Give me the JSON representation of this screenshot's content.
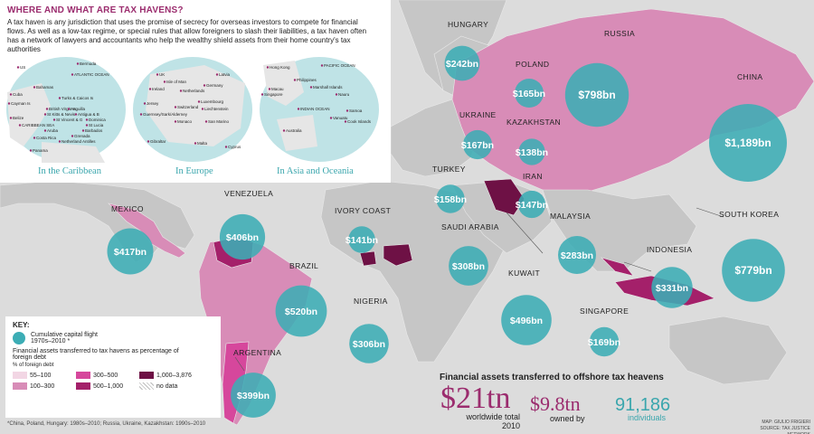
{
  "title": "WHERE AND WHAT ARE TAX HAVENS?",
  "intro": "A tax haven is any jurisdiction that uses the promise of secrecy for overseas investors to compete for financial flows. As well as a low-tax regime, or special rules that allow foreigners to slash their liabilities, a tax haven often has a network of lawyers and accountants who help the wealthy shield assets from their home country's tax authorities",
  "insets": [
    {
      "caption": "In the Caribbean",
      "places": [
        "US",
        "Bermuda",
        "ATLANTIC OCEAN",
        "Bahamas",
        "Cuba",
        "Cayman Is",
        "Turks & Caicos Is",
        "British Virgin Is",
        "Anguilla",
        "St Kitts & Nevis",
        "Antigua & B",
        "Dominica",
        "St Vincent & G",
        "St Lucia",
        "Belize",
        "CARIBBEAN SEA",
        "Aruba",
        "Barbados",
        "Grenada",
        "Costa Rica",
        "Netherland Antilles",
        "Panama"
      ]
    },
    {
      "caption": "In Europe",
      "places": [
        "UK",
        "Isle of Man",
        "Latvia",
        "Ireland",
        "Netherlands",
        "Germany",
        "Jersey",
        "Switzerland",
        "Luxembourg",
        "Liechtenstein",
        "Guernsey/Sark/Alderney",
        "Monaco",
        "San Marino",
        "Gibraltar",
        "Malta",
        "Cyprus"
      ]
    },
    {
      "caption": "In Asia and Oceania",
      "places": [
        "Hong Kong",
        "PACIFIC OCEAN",
        "Philippines",
        "Macau",
        "Singapore",
        "Marshall Islands",
        "Nauru",
        "INDIAN OCEAN",
        "Australia",
        "Samoa",
        "Vanuatu",
        "Cook Islands"
      ]
    }
  ],
  "countries": [
    {
      "name": "HUNGARY",
      "value": "$242bn",
      "amount": 242
    },
    {
      "name": "RUSSIA",
      "value": "$798bn",
      "amount": 798
    },
    {
      "name": "POLAND",
      "value": "$165bn",
      "amount": 165
    },
    {
      "name": "CHINA",
      "value": "$1,189bn",
      "amount": 1189
    },
    {
      "name": "UKRAINE",
      "value": "$167bn",
      "amount": 167
    },
    {
      "name": "KAZAKHSTAN",
      "value": "$138bn",
      "amount": 138
    },
    {
      "name": "TURKEY",
      "value": "$158bn",
      "amount": 158
    },
    {
      "name": "IRAN",
      "value": "$147bn",
      "amount": 147
    },
    {
      "name": "VENEZUELA",
      "value": "$406bn",
      "amount": 406
    },
    {
      "name": "IVORY COAST",
      "value": "$141bn",
      "amount": 141
    },
    {
      "name": "MEXICO",
      "value": "$417bn",
      "amount": 417
    },
    {
      "name": "SAUDI ARABIA",
      "value": "$308bn",
      "amount": 308
    },
    {
      "name": "MALAYSIA",
      "value": "$283bn",
      "amount": 283
    },
    {
      "name": "SOUTH KOREA",
      "value": "$779bn",
      "amount": 779
    },
    {
      "name": "INDONESIA",
      "value": "$331bn",
      "amount": 331
    },
    {
      "name": "BRAZIL",
      "value": "$520bn",
      "amount": 520
    },
    {
      "name": "NIGERIA",
      "value": "$306bn",
      "amount": 306
    },
    {
      "name": "KUWAIT",
      "value": "$496bn",
      "amount": 496
    },
    {
      "name": "SINGAPORE",
      "value": "$169bn",
      "amount": 169
    },
    {
      "name": "ARGENTINA",
      "value": "$399bn",
      "amount": 399
    }
  ],
  "key": {
    "title": "KEY:",
    "circle_label": "Cumulative capital flight 1970s–2010 *",
    "scale_title": "Financial assets transferred to tax havens as percentage of foreign debt",
    "scale_unit": "% of foreign debt",
    "bins": [
      {
        "label": "55–100",
        "color": "#f2d6e4"
      },
      {
        "label": "300–500",
        "color": "#d6479c"
      },
      {
        "label": "1,000–3,876",
        "color": "#6e1145"
      },
      {
        "label": "100–300",
        "color": "#d88cb7"
      },
      {
        "label": "500–1,000",
        "color": "#a4206a"
      },
      {
        "label": "no data",
        "color": "hatch"
      }
    ]
  },
  "footnote": "*China, Poland, Hungary: 1980s–2010; Russia, Ukraine, Kazakhstan: 1990s–2010",
  "summary": {
    "title": "Financial assets transferred to offshore tax heavens",
    "total": "$21tn",
    "total_sub": "worldwide total 2010",
    "owned": "$9.8tn",
    "owned_sub": "owned by",
    "individuals": "91,186",
    "individuals_sub": "individuals"
  },
  "credit": [
    "MAP: GIULIO FRIGIERI",
    "SOURCE: TAX JUSTICE NETWORK"
  ],
  "colors": {
    "bubble": "#3cadb5",
    "accent": "#9b2c6e",
    "land": "#c6c6c6",
    "sea": "#dcdcdc"
  }
}
